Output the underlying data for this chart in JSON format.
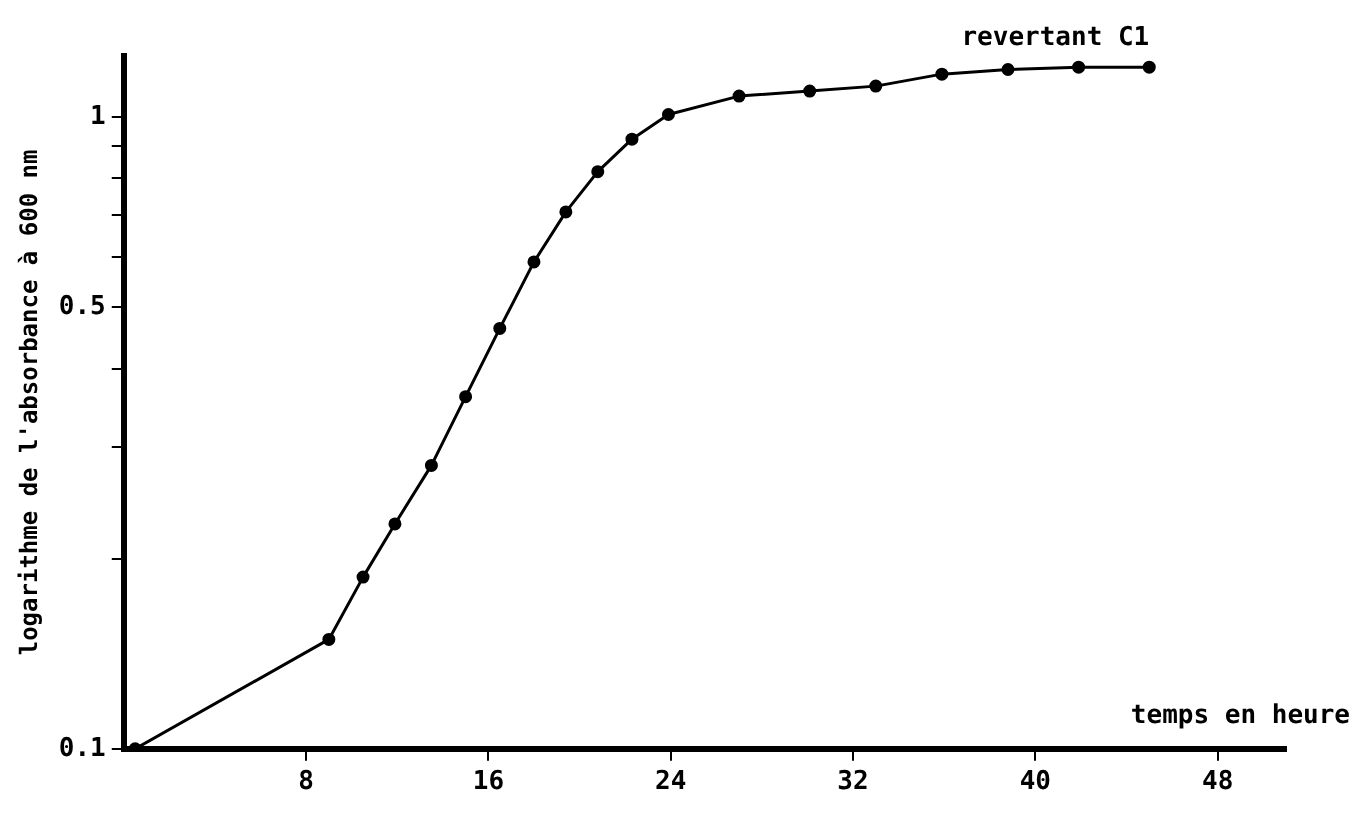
{
  "chart_data": {
    "type": "line",
    "xlabel": "temps en heure",
    "ylabel": "logarithme de l'absorbance à 600 nm",
    "log": "y",
    "grid": false,
    "legend": false,
    "marker": "circle",
    "line_style": "solid",
    "xlim": [
      0,
      51
    ],
    "xticks": [
      8,
      16,
      24,
      32,
      40,
      48
    ],
    "ylim": [
      0.1,
      1.25
    ],
    "yticks": [
      0.1,
      {
        "value": 0.2,
        "label": null
      },
      {
        "value": 0.3,
        "label": null
      },
      {
        "value": 0.4,
        "label": null
      },
      0.5,
      {
        "value": 0.6,
        "label": null
      },
      {
        "value": 0.7,
        "label": null
      },
      {
        "value": 0.8,
        "label": null
      },
      {
        "value": 0.9,
        "label": null
      },
      1
    ],
    "series": [
      {
        "name": "revertant C1",
        "color": "#000000",
        "x": [
          0.5,
          9.0,
          10.5,
          11.9,
          13.5,
          15.0,
          16.5,
          18.0,
          19.4,
          20.8,
          22.3,
          23.9,
          27.0,
          30.1,
          33.0,
          35.9,
          38.8,
          41.9,
          45.0
        ],
        "values": [
          0.1,
          0.149,
          0.187,
          0.227,
          0.281,
          0.361,
          0.463,
          0.59,
          0.708,
          0.82,
          0.923,
          1.01,
          1.08,
          1.1,
          1.12,
          1.17,
          1.19,
          1.2,
          1.2
        ]
      }
    ]
  }
}
